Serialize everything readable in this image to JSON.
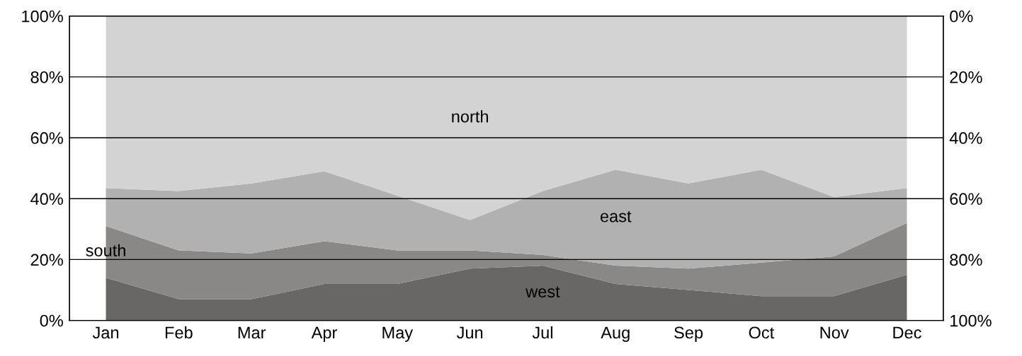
{
  "chart_data": {
    "type": "area",
    "stacked": true,
    "categories": [
      "Jan",
      "Feb",
      "Mar",
      "Apr",
      "May",
      "Jun",
      "Jul",
      "Aug",
      "Sep",
      "Oct",
      "Nov",
      "Dec"
    ],
    "series": [
      {
        "name": "west",
        "color": "#686766",
        "values": [
          14,
          7,
          7,
          12,
          12,
          17,
          18,
          12,
          10,
          8,
          8,
          15
        ]
      },
      {
        "name": "south",
        "color": "#8a8787",
        "values": [
          17,
          16,
          15,
          14,
          11,
          6,
          3.5,
          6,
          7,
          11,
          13,
          17
        ]
      },
      {
        "name": "east",
        "color": "#b2b1b1",
        "values": [
          12.5,
          19.5,
          23,
          23,
          18,
          10,
          21,
          31.5,
          28,
          30.5,
          19.5,
          11.5
        ]
      },
      {
        "name": "north",
        "color": "#d4d3d4",
        "values": [
          56.5,
          57.5,
          55,
          51,
          59,
          67,
          57.5,
          50.5,
          55,
          50.5,
          59.5,
          56.5
        ]
      }
    ],
    "ylim": [
      0,
      100
    ],
    "yticks": [
      {
        "value": 0,
        "label": "0%"
      },
      {
        "value": 20,
        "label": "20%"
      },
      {
        "value": 40,
        "label": "40%"
      },
      {
        "value": 60,
        "label": "60%"
      },
      {
        "value": 80,
        "label": "80%"
      },
      {
        "value": 100,
        "label": "100%"
      }
    ],
    "y2lim": [
      100,
      0
    ],
    "y2ticks": [
      {
        "value": 0,
        "label": "0%"
      },
      {
        "value": 20,
        "label": "20%"
      },
      {
        "value": 40,
        "label": "40%"
      },
      {
        "value": 60,
        "label": "60%"
      },
      {
        "value": 80,
        "label": "80%"
      },
      {
        "value": 100,
        "label": "100%"
      }
    ],
    "grid": true,
    "legend": false
  }
}
